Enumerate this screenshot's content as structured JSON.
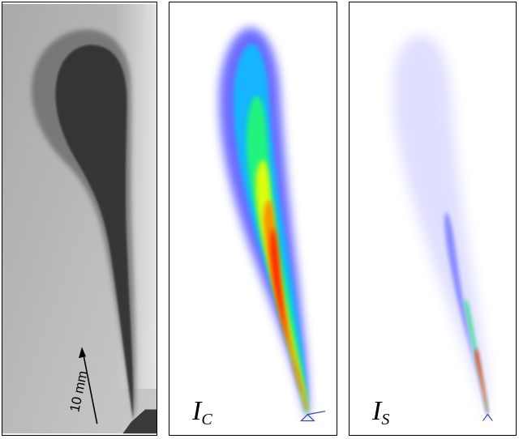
{
  "panels": {
    "shadowgraph": {
      "scale_bar_label": "10 mm"
    },
    "continuous": {
      "symbol": "I",
      "subscript": "C"
    },
    "scattered": {
      "symbol": "I",
      "subscript": "S"
    }
  },
  "colors": {
    "background": "#ffffff",
    "frame": "#000000",
    "colormap": [
      "#3a3aff",
      "#00c8ff",
      "#22ff66",
      "#f0ff00",
      "#ff8800",
      "#ff2200"
    ]
  }
}
